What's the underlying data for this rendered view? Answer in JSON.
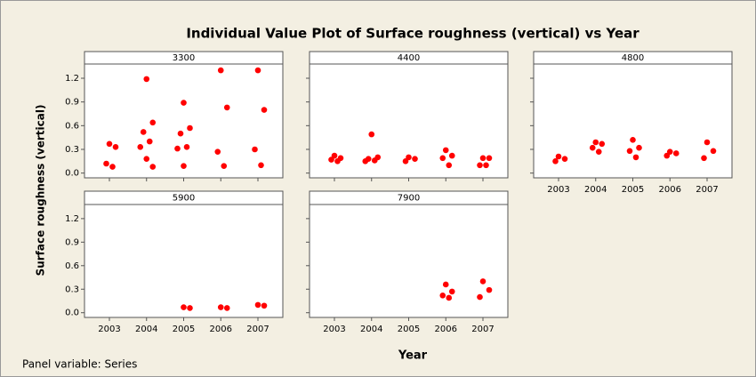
{
  "chart_data": {
    "type": "scatter",
    "title": "Individual Value Plot of Surface roughness (vertical) vs Year",
    "x_label": "Year",
    "y_label": "Surface roughness (vertical)",
    "footnote": "Panel variable: Series",
    "categories": [
      "2003",
      "2004",
      "2005",
      "2006",
      "2007"
    ],
    "ylim": [
      -0.06,
      1.38
    ],
    "yticks": [
      {
        "value": 0,
        "label": "0.0"
      },
      0.3,
      0.6,
      0.9,
      1.2
    ],
    "color": "#ff0000",
    "panels": [
      {
        "name": "3300",
        "x": [
          "2003",
          "2003",
          "2003",
          "2003",
          "2004",
          "2004",
          "2004",
          "2004",
          "2004",
          "2004",
          "2004",
          "2005",
          "2005",
          "2005",
          "2005",
          "2005",
          "2005",
          "2006",
          "2006",
          "2006",
          "2006",
          "2007",
          "2007",
          "2007",
          "2007"
        ],
        "values": [
          0.37,
          0.33,
          0.12,
          0.08,
          1.19,
          0.64,
          0.52,
          0.4,
          0.33,
          0.18,
          0.08,
          0.89,
          0.57,
          0.5,
          0.33,
          0.31,
          0.09,
          1.3,
          0.83,
          0.27,
          0.09,
          1.3,
          0.8,
          0.3,
          0.1
        ]
      },
      {
        "name": "4400",
        "x": [
          "2003",
          "2003",
          "2003",
          "2003",
          "2004",
          "2004",
          "2004",
          "2004",
          "2004",
          "2005",
          "2005",
          "2005",
          "2006",
          "2006",
          "2006",
          "2006",
          "2007",
          "2007",
          "2007",
          "2007"
        ],
        "values": [
          0.22,
          0.19,
          0.17,
          0.15,
          0.49,
          0.2,
          0.18,
          0.16,
          0.15,
          0.2,
          0.18,
          0.15,
          0.29,
          0.22,
          0.19,
          0.1,
          0.19,
          0.19,
          0.1,
          0.1
        ]
      },
      {
        "name": "4800",
        "x": [
          "2003",
          "2003",
          "2003",
          "2004",
          "2004",
          "2004",
          "2004",
          "2005",
          "2005",
          "2005",
          "2005",
          "2006",
          "2006",
          "2006",
          "2007",
          "2007",
          "2007"
        ],
        "values": [
          0.21,
          0.18,
          0.15,
          0.39,
          0.37,
          0.32,
          0.27,
          0.42,
          0.32,
          0.28,
          0.2,
          0.27,
          0.25,
          0.22,
          0.39,
          0.28,
          0.19
        ]
      },
      {
        "name": "5900",
        "x": [
          "2005",
          "2005",
          "2006",
          "2006",
          "2007",
          "2007"
        ],
        "values": [
          0.07,
          0.06,
          0.07,
          0.06,
          0.1,
          0.09
        ]
      },
      {
        "name": "7900",
        "x": [
          "2006",
          "2006",
          "2006",
          "2006",
          "2007",
          "2007",
          "2007"
        ],
        "values": [
          0.36,
          0.27,
          0.22,
          0.19,
          0.4,
          0.29,
          0.2
        ]
      }
    ]
  }
}
